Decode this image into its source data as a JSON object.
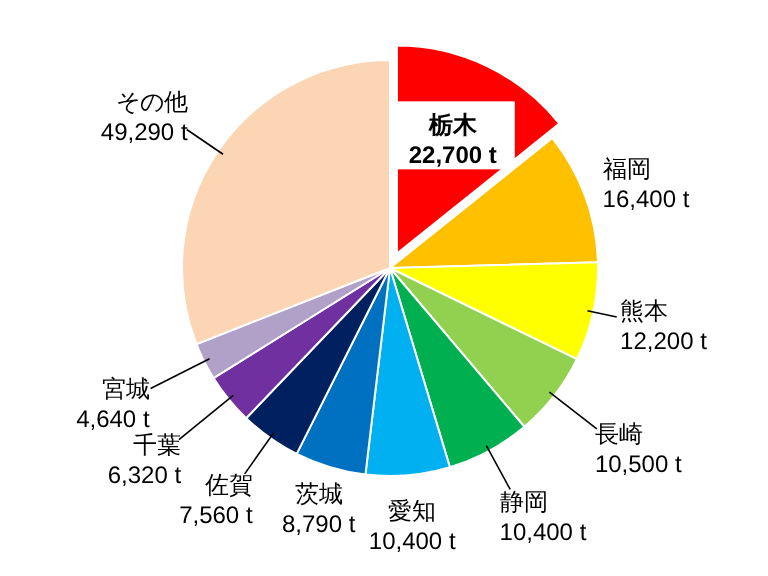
{
  "chart_data": {
    "type": "pie",
    "categories": [
      "栃木",
      "福岡",
      "熊本",
      "長崎",
      "静岡",
      "愛知",
      "茨城",
      "佐賀",
      "千葉",
      "宮城",
      "その他"
    ],
    "values": [
      22700,
      16400,
      12200,
      10500,
      10400,
      10400,
      8790,
      7560,
      6320,
      4640,
      49290
    ],
    "value_labels": [
      "22,700 t",
      "16,400 t",
      "12,200 t",
      "10,500 t",
      "10,400 t",
      "10,400 t",
      "8,790 t",
      "7,560 t",
      "6,320 t",
      "4,640 t",
      "49,290 t"
    ],
    "colors": [
      "#ff0000",
      "#ffc000",
      "#ffff00",
      "#92d050",
      "#00b050",
      "#00b0f0",
      "#0070c0",
      "#002060",
      "#7030a0",
      "#b1a0c7",
      "#fcd5b4"
    ]
  }
}
